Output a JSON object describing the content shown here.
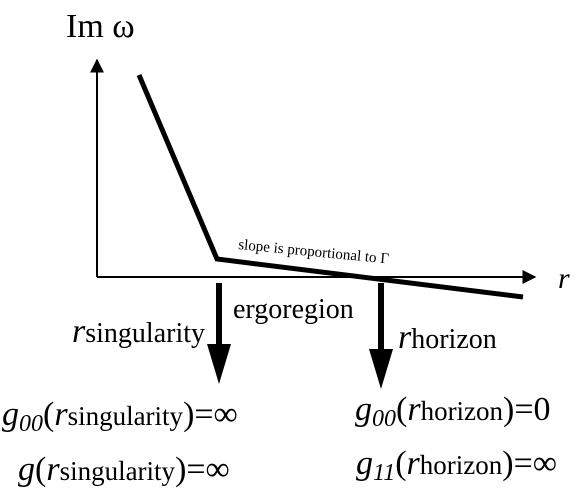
{
  "diagram": {
    "y_axis_label": "Im ω",
    "x_axis_label": "r",
    "slope_note": "slope is proportional to Γ",
    "region_label": "ergoregion",
    "r_singularity": {
      "r": "r",
      "sub": "singularity"
    },
    "r_horizon": {
      "r": "r",
      "sub": "horizon"
    },
    "eq_g00_singularity": {
      "g": "g",
      "idx": "00",
      "open": "(",
      "r": "r",
      "sub": "singularity",
      "close": ")=∞"
    },
    "eq_g_singularity": {
      "g": "g",
      "open": "(",
      "r": "r",
      "sub": "singularity",
      "close": ")=∞"
    },
    "eq_g00_horizon": {
      "g": "g",
      "idx": "00",
      "open": "(",
      "r": "r",
      "sub": "horizon",
      "close": ")=0"
    },
    "eq_g11_horizon": {
      "g": "g",
      "idx": "11",
      "open": "(",
      "r": "r",
      "sub": "horizon",
      "close": ")=∞"
    }
  }
}
